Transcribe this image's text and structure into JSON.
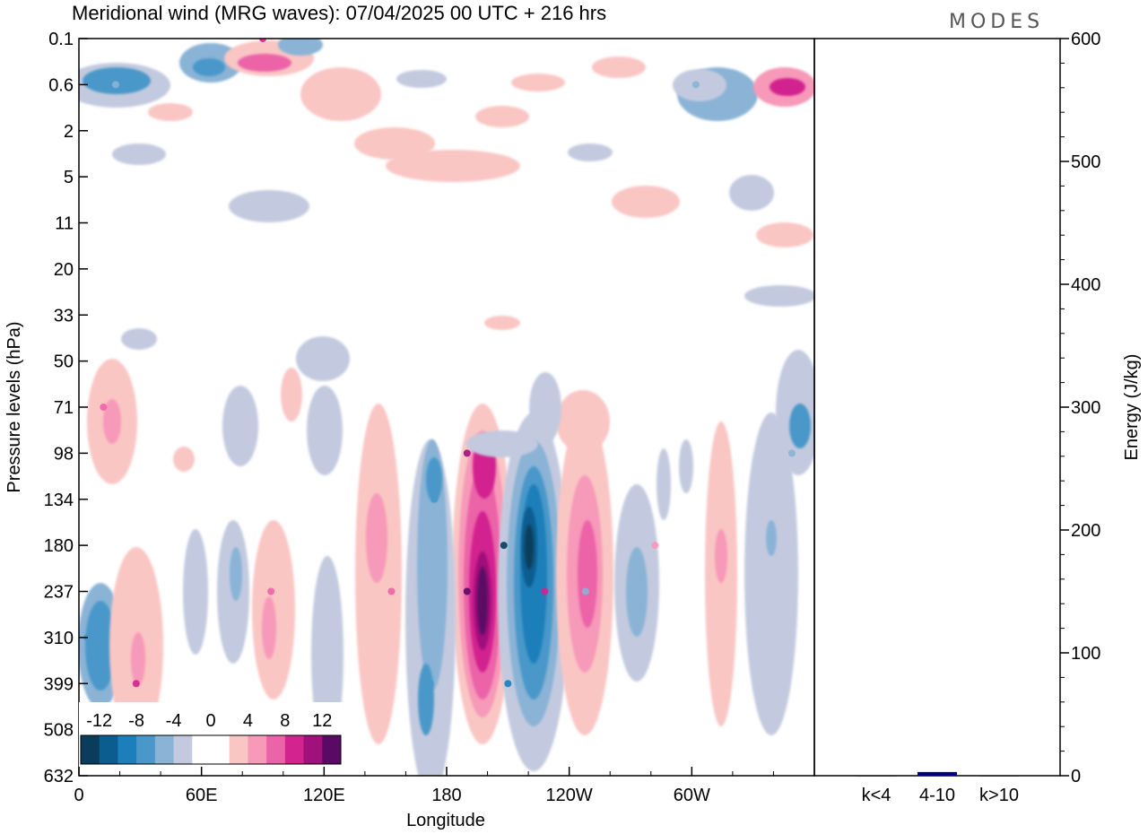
{
  "title": "Meridional wind (MRG waves):  07/04/2025  00 UTC  + 216 hrs",
  "logo": "MODES",
  "chart_data": [
    {
      "type": "heatmap",
      "xlabel": "Longitude",
      "ylabel": "Pressure levels (hPa)",
      "x_ticks": [
        "0",
        "60E",
        "120E",
        "180",
        "120W",
        "60W"
      ],
      "y_ticks": [
        "0.1",
        "0.6",
        "2",
        "5",
        "11",
        "20",
        "33",
        "50",
        "71",
        "98",
        "134",
        "180",
        "237",
        "310",
        "399",
        "508",
        "632"
      ],
      "colorbar": {
        "labels": [
          "-12",
          "-8",
          "-4",
          "0",
          "4",
          "8",
          "12"
        ],
        "levels": [
          -14,
          -12,
          -10,
          -8,
          -6,
          -4,
          -2,
          0,
          2,
          4,
          6,
          8,
          10,
          12,
          14
        ],
        "colors": [
          "#0a3d5c",
          "#0b5d8f",
          "#1a7fba",
          "#4a98c9",
          "#8ab3d6",
          "#c3cadf",
          "#ffffff",
          "#ffffff",
          "#f9c6c4",
          "#f799b8",
          "#ec64a8",
          "#d2238f",
          "#a0117b",
          "#5a0a64"
        ]
      },
      "features": [
        {
          "lon": 190,
          "level": "237",
          "value": 14
        },
        {
          "lon": 190,
          "level": "98",
          "value": 10
        },
        {
          "lon": 208,
          "level": "180",
          "value": -14
        },
        {
          "lon": 210,
          "level": "399",
          "value": -10
        },
        {
          "lon": 174,
          "level": "134",
          "value": -8
        },
        {
          "lon": 172,
          "level": "399",
          "value": -8
        },
        {
          "lon": 228,
          "level": "237",
          "value": 8
        },
        {
          "lon": 248,
          "level": "237",
          "value": -6
        },
        {
          "lon": 4,
          "level": "310",
          "value": -8
        },
        {
          "lon": 28,
          "level": "399",
          "value": 8
        },
        {
          "lon": 12,
          "level": "71",
          "value": 6
        },
        {
          "lon": 94,
          "level": "237",
          "value": 6
        },
        {
          "lon": 153,
          "level": "237",
          "value": 6
        },
        {
          "lon": 282,
          "level": "180",
          "value": 4
        },
        {
          "lon": 349,
          "level": "98",
          "value": -6
        },
        {
          "lon": 18,
          "level": "0.6",
          "value": -6
        },
        {
          "lon": 350,
          "level": "0.6",
          "value": 8
        },
        {
          "lon": 90,
          "level": "0.1",
          "value": 8
        },
        {
          "lon": 302,
          "level": "0.6",
          "value": -6
        }
      ]
    },
    {
      "type": "bar",
      "categories": [
        "k<4",
        "4-10",
        "k>10"
      ],
      "values": [
        0,
        3,
        0
      ],
      "ylabel": "Energy (J/kg)",
      "ylim": [
        0,
        600
      ],
      "y_ticks": [
        "0",
        "100",
        "200",
        "300",
        "400",
        "500",
        "600"
      ],
      "bar_color": "#000080"
    }
  ]
}
